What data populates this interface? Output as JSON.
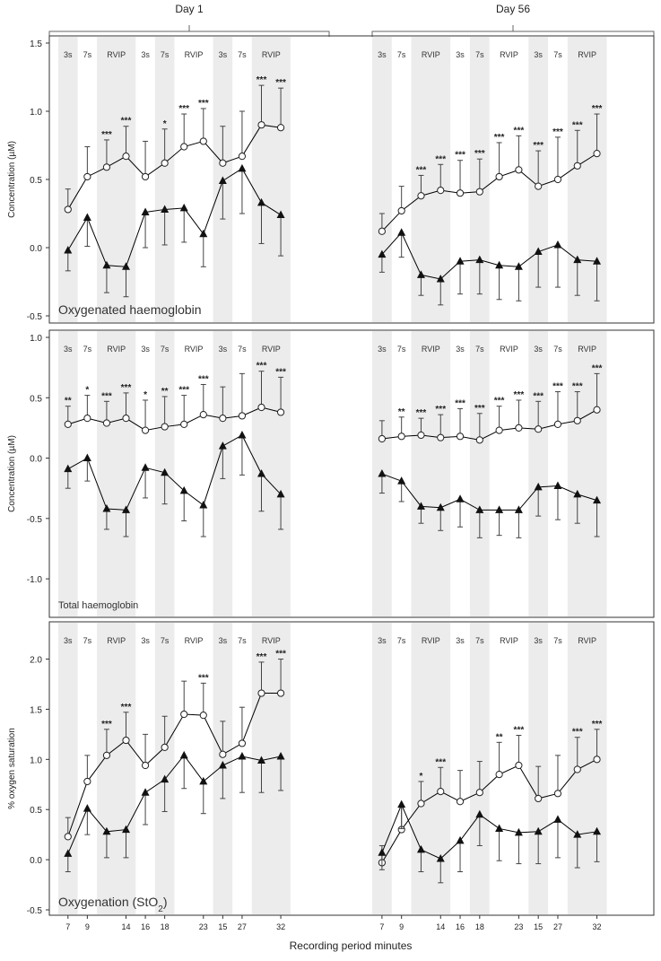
{
  "figure": {
    "columns": [
      "Day 1",
      "Day 56"
    ],
    "xlabel": "Recording period minutes",
    "bands": [
      {
        "label": "3s",
        "shade": true
      },
      {
        "label": "7s",
        "shade": false
      },
      {
        "label": "RVIP",
        "shade": true
      },
      {
        "label": "3s",
        "shade": false
      },
      {
        "label": "7s",
        "shade": true
      },
      {
        "label": "RVIP",
        "shade": false
      },
      {
        "label": "3s",
        "shade": true
      },
      {
        "label": "7s",
        "shade": false
      },
      {
        "label": "RVIP",
        "shade": true
      }
    ],
    "x_ticks": [
      "7",
      "9",
      "14",
      "16",
      "18",
      "23",
      "15",
      "27",
      "32"
    ],
    "x_tick_index": [
      0,
      1,
      3,
      4,
      5,
      7,
      8,
      9,
      11
    ],
    "colors": {
      "shade": "#ececec",
      "line": "#000000",
      "open_marker": "#ffffff",
      "frame": "#333333",
      "gray_marker": "#777777"
    }
  },
  "chart_data": [
    {
      "type": "line",
      "panel_label": "Oxygenated haemoglobin",
      "ylabel": "Concentration (µM)",
      "ylim": [
        -0.5,
        1.5
      ],
      "yticks": [
        "-0.5",
        "0.0",
        "0.5",
        "1.0",
        "1.5"
      ],
      "ytick_values": [
        -0.5,
        0,
        0.5,
        1.0,
        1.5
      ],
      "columns": [
        {
          "day": "Day 1",
          "series": [
            {
              "name": "open-circle",
              "values": [
                0.28,
                0.52,
                0.59,
                0.67,
                0.52,
                0.62,
                0.74,
                0.78,
                0.62,
                0.67,
                0.9,
                0.88
              ],
              "err": [
                0.15,
                0.22,
                0.2,
                0.22,
                0.26,
                0.25,
                0.24,
                0.24,
                0.27,
                0.33,
                0.29,
                0.29
              ]
            },
            {
              "name": "filled-triangle",
              "values": [
                -0.02,
                0.22,
                -0.13,
                -0.14,
                0.26,
                0.28,
                0.29,
                0.1,
                0.49,
                0.58,
                0.33,
                0.24
              ],
              "err": [
                0.15,
                0.21,
                0.2,
                0.22,
                0.26,
                0.26,
                0.25,
                0.24,
                0.28,
                0.33,
                0.3,
                0.3
              ]
            }
          ],
          "sig": [
            "",
            "",
            "***",
            "***",
            "",
            "*",
            "***",
            "***",
            "",
            "",
            "***",
            "***"
          ]
        },
        {
          "day": "Day 56",
          "series": [
            {
              "name": "open-circle",
              "values": [
                0.12,
                0.27,
                0.38,
                0.42,
                0.4,
                0.41,
                0.52,
                0.57,
                0.45,
                0.5,
                0.6,
                0.69
              ],
              "err": [
                0.13,
                0.18,
                0.15,
                0.19,
                0.24,
                0.24,
                0.25,
                0.25,
                0.26,
                0.31,
                0.26,
                0.29
              ]
            },
            {
              "name": "filled-triangle",
              "values": [
                -0.05,
                0.11,
                -0.2,
                -0.23,
                -0.1,
                -0.09,
                -0.13,
                -0.14,
                -0.03,
                0.02,
                -0.09,
                -0.1
              ],
              "err": [
                0.13,
                0.18,
                0.15,
                0.19,
                0.24,
                0.25,
                0.25,
                0.25,
                0.26,
                0.31,
                0.26,
                0.29
              ]
            }
          ],
          "sig": [
            "",
            "",
            "***",
            "***",
            "***",
            "***",
            "***",
            "***",
            "***",
            "***",
            "***",
            "***"
          ]
        }
      ]
    },
    {
      "type": "line",
      "panel_label": "Total haemoglobin",
      "ylabel": "Concentration (µM)",
      "ylim": [
        -1.2,
        1.0
      ],
      "yticks": [
        "-1.0",
        "-0.5",
        "0.0",
        "0.5",
        "1.0"
      ],
      "ytick_values": [
        -1.0,
        -0.5,
        0,
        0.5,
        1.0
      ],
      "columns": [
        {
          "day": "Day 1",
          "series": [
            {
              "name": "open-circle",
              "values": [
                0.28,
                0.33,
                0.29,
                0.33,
                0.23,
                0.26,
                0.28,
                0.36,
                0.33,
                0.35,
                0.42,
                0.38
              ],
              "err": [
                0.15,
                0.19,
                0.18,
                0.21,
                0.25,
                0.25,
                0.24,
                0.25,
                0.26,
                0.35,
                0.3,
                0.29
              ]
            },
            {
              "name": "filled-triangle",
              "values": [
                -0.09,
                0.0,
                -0.42,
                -0.43,
                -0.08,
                -0.12,
                -0.27,
                -0.39,
                0.1,
                0.19,
                -0.13,
                -0.3
              ],
              "err": [
                0.16,
                0.19,
                0.17,
                0.22,
                0.25,
                0.26,
                0.25,
                0.26,
                0.27,
                0.33,
                0.31,
                0.29
              ]
            }
          ],
          "sig": [
            "**",
            "*",
            "***",
            "***",
            "*",
            "**",
            "***",
            "***",
            "",
            "",
            "***",
            "***"
          ]
        },
        {
          "day": "Day 56",
          "series": [
            {
              "name": "open-circle",
              "values": [
                0.16,
                0.18,
                0.19,
                0.17,
                0.18,
                0.15,
                0.23,
                0.25,
                0.24,
                0.28,
                0.31,
                0.4
              ],
              "err": [
                0.15,
                0.16,
                0.14,
                0.19,
                0.23,
                0.22,
                0.2,
                0.23,
                0.23,
                0.27,
                0.24,
                0.3
              ]
            },
            {
              "name": "filled-triangle",
              "values": [
                -0.13,
                -0.19,
                -0.4,
                -0.41,
                -0.34,
                -0.43,
                -0.43,
                -0.43,
                -0.24,
                -0.23,
                -0.3,
                -0.35
              ],
              "err": [
                0.16,
                0.17,
                0.14,
                0.19,
                0.23,
                0.23,
                0.21,
                0.23,
                0.24,
                0.28,
                0.24,
                0.3
              ]
            }
          ],
          "sig": [
            "",
            "**",
            "***",
            "***",
            "***",
            "***",
            "***",
            "***",
            "***",
            "***",
            "***",
            "***"
          ]
        }
      ]
    },
    {
      "type": "line",
      "panel_label": "Oxygenation (StO",
      "panel_label_sub": "2",
      "panel_label_close": ")",
      "ylabel": "% oxygen saturation",
      "ylim": [
        -0.5,
        2.3
      ],
      "yticks": [
        "-0.5",
        "0.0",
        "0.5",
        "1.0",
        "1.5",
        "2.0"
      ],
      "ytick_values": [
        -0.5,
        0,
        0.5,
        1.0,
        1.5,
        2.0
      ],
      "columns": [
        {
          "day": "Day 1",
          "series": [
            {
              "name": "open-circle",
              "values": [
                0.23,
                0.78,
                1.04,
                1.19,
                0.94,
                1.12,
                1.45,
                1.44,
                1.05,
                1.16,
                1.66,
                1.66
              ],
              "err": [
                0.19,
                0.26,
                0.26,
                0.28,
                0.31,
                0.31,
                0.33,
                0.32,
                0.33,
                0.36,
                0.31,
                0.34
              ]
            },
            {
              "name": "filled-triangle",
              "values": [
                0.06,
                0.51,
                0.28,
                0.3,
                0.67,
                0.8,
                1.04,
                0.78,
                0.94,
                1.03,
                0.99,
                1.03
              ],
              "err": [
                0.18,
                0.26,
                0.26,
                0.28,
                0.32,
                0.32,
                0.33,
                0.32,
                0.33,
                0.36,
                0.32,
                0.34
              ]
            }
          ],
          "sig": [
            "",
            "",
            "***",
            "***",
            "",
            "",
            "",
            "***",
            "",
            "",
            "***",
            "***"
          ]
        },
        {
          "day": "Day 56",
          "series": [
            {
              "name": "open-circle",
              "values": [
                -0.03,
                0.3,
                0.56,
                0.68,
                0.58,
                0.67,
                0.85,
                0.94,
                0.61,
                0.66,
                0.9,
                1.0
              ],
              "err": [
                0.17,
                0.23,
                0.22,
                0.24,
                0.31,
                0.31,
                0.32,
                0.3,
                0.32,
                0.38,
                0.32,
                0.3
              ]
            },
            {
              "name": "filled-triangle",
              "values": [
                0.07,
                0.55,
                0.1,
                0.01,
                0.19,
                0.45,
                0.31,
                0.27,
                0.28,
                0.4,
                0.25,
                0.28
              ],
              "err": [
                0.17,
                0.24,
                0.22,
                0.24,
                0.31,
                0.31,
                0.32,
                0.31,
                0.32,
                0.38,
                0.33,
                0.3
              ]
            }
          ],
          "sig": [
            "",
            "",
            "*",
            "***",
            "",
            "",
            "**",
            "***",
            "",
            "",
            "***",
            "***"
          ]
        }
      ]
    }
  ]
}
